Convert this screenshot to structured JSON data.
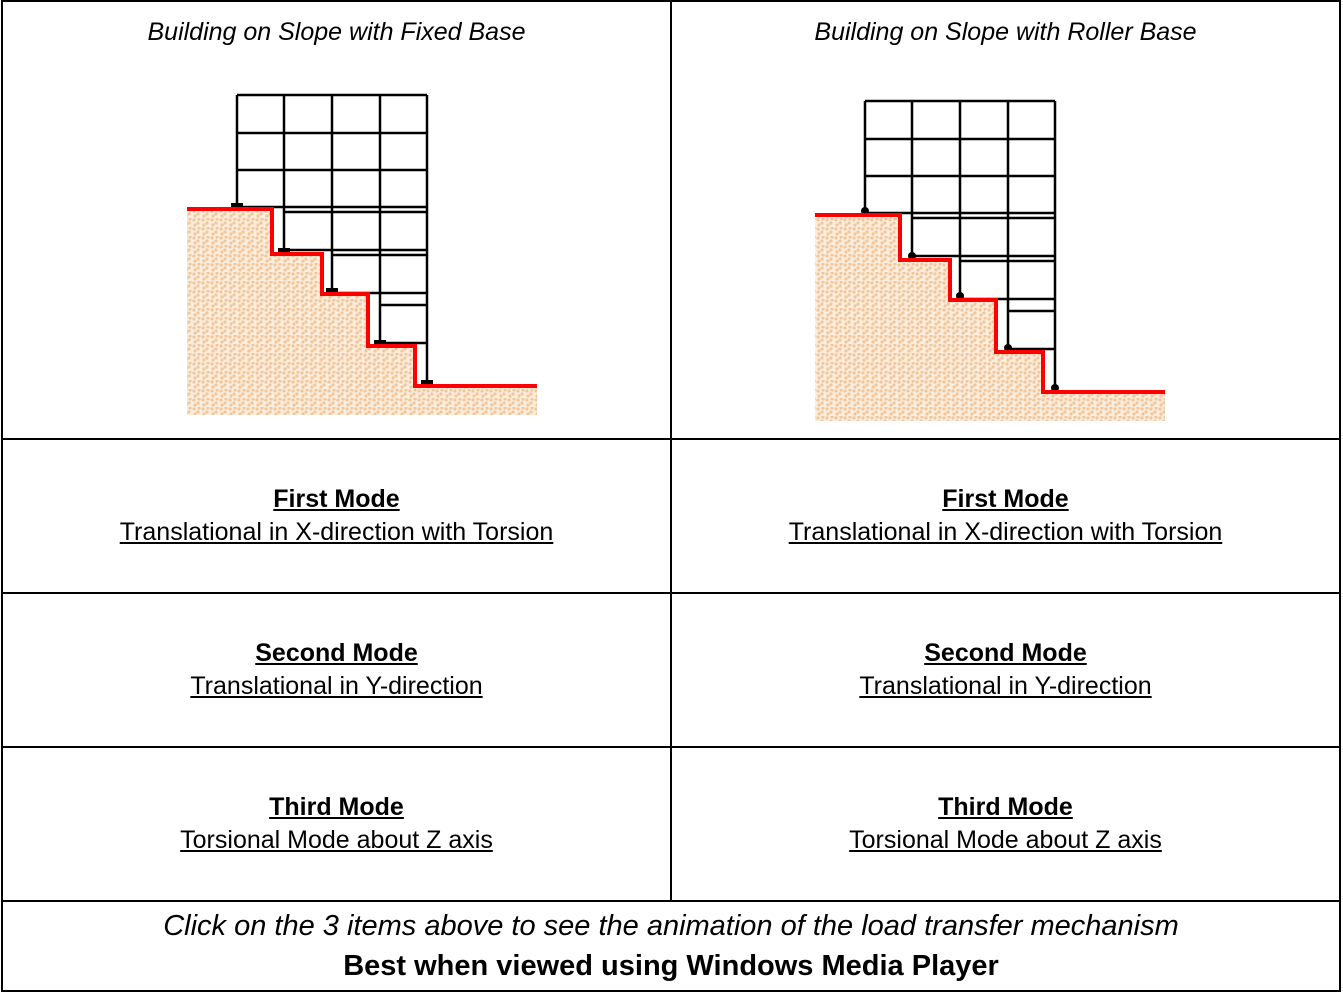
{
  "table": {
    "headers": [
      "Building on Slope with Fixed Base",
      "Building on Slope with Roller Base"
    ],
    "rows": [
      [
        {
          "title": "First Mode",
          "description": "Translational in X-direction with Torsion"
        },
        {
          "title": "First Mode",
          "description": "Translational in X-direction with Torsion"
        }
      ],
      [
        {
          "title": "Second Mode",
          "description": "Translational in Y-direction"
        },
        {
          "title": "Second Mode",
          "description": "Translational in Y-direction"
        }
      ],
      [
        {
          "title": "Third Mode",
          "description": "Torsional Mode about Z axis"
        },
        {
          "title": "Third Mode",
          "description": "Torsional Mode about Z axis"
        }
      ]
    ]
  },
  "footer": {
    "note": "Click on the 3 items above to see the animation of the load transfer mechanism",
    "recommendation": "Best when viewed using Windows Media Player"
  }
}
